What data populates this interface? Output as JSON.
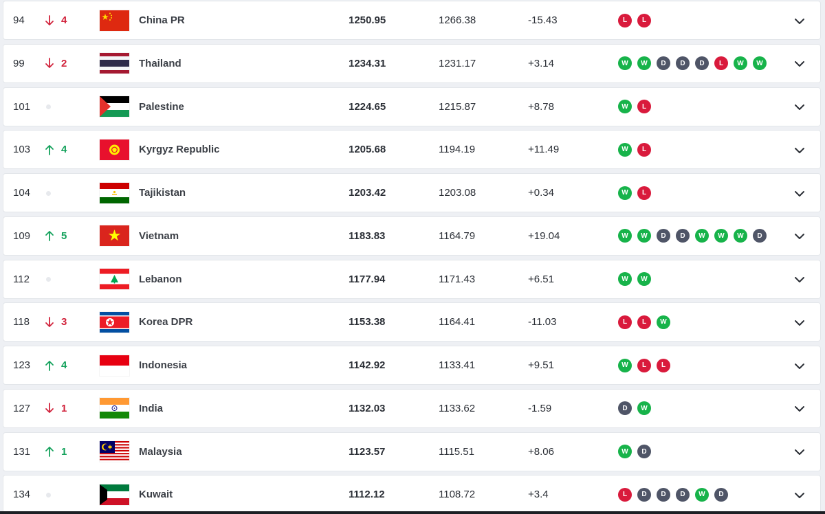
{
  "form_colors": {
    "W": "#17b34a",
    "L": "#d91a3c",
    "D": "#4f5567"
  },
  "movement_colors": {
    "up": "#13a15b",
    "down": "#d1223b"
  },
  "rows": [
    {
      "rank": "94",
      "move": "down",
      "move_by": "4",
      "team": "China PR",
      "flag": "china",
      "points": "1250.95",
      "previous": "1266.38",
      "change": "-15.43",
      "form": [
        "L",
        "L"
      ]
    },
    {
      "rank": "99",
      "move": "down",
      "move_by": "2",
      "team": "Thailand",
      "flag": "thailand",
      "points": "1234.31",
      "previous": "1231.17",
      "change": "+3.14",
      "form": [
        "W",
        "W",
        "D",
        "D",
        "D",
        "L",
        "W",
        "W"
      ]
    },
    {
      "rank": "101",
      "move": "none",
      "move_by": "",
      "team": "Palestine",
      "flag": "palestine",
      "points": "1224.65",
      "previous": "1215.87",
      "change": "+8.78",
      "form": [
        "W",
        "L"
      ]
    },
    {
      "rank": "103",
      "move": "up",
      "move_by": "4",
      "team": "Kyrgyz Republic",
      "flag": "kyrgyz",
      "points": "1205.68",
      "previous": "1194.19",
      "change": "+11.49",
      "form": [
        "W",
        "L"
      ]
    },
    {
      "rank": "104",
      "move": "none",
      "move_by": "",
      "team": "Tajikistan",
      "flag": "tajikistan",
      "points": "1203.42",
      "previous": "1203.08",
      "change": "+0.34",
      "form": [
        "W",
        "L"
      ]
    },
    {
      "rank": "109",
      "move": "up",
      "move_by": "5",
      "team": "Vietnam",
      "flag": "vietnam",
      "points": "1183.83",
      "previous": "1164.79",
      "change": "+19.04",
      "form": [
        "W",
        "W",
        "D",
        "D",
        "W",
        "W",
        "W",
        "D"
      ]
    },
    {
      "rank": "112",
      "move": "none",
      "move_by": "",
      "team": "Lebanon",
      "flag": "lebanon",
      "points": "1177.94",
      "previous": "1171.43",
      "change": "+6.51",
      "form": [
        "W",
        "W"
      ]
    },
    {
      "rank": "118",
      "move": "down",
      "move_by": "3",
      "team": "Korea DPR",
      "flag": "koreadpr",
      "points": "1153.38",
      "previous": "1164.41",
      "change": "-11.03",
      "form": [
        "L",
        "L",
        "W"
      ]
    },
    {
      "rank": "123",
      "move": "up",
      "move_by": "4",
      "team": "Indonesia",
      "flag": "indonesia",
      "points": "1142.92",
      "previous": "1133.41",
      "change": "+9.51",
      "form": [
        "W",
        "L",
        "L"
      ]
    },
    {
      "rank": "127",
      "move": "down",
      "move_by": "1",
      "team": "India",
      "flag": "india",
      "points": "1132.03",
      "previous": "1133.62",
      "change": "-1.59",
      "form": [
        "D",
        "W"
      ]
    },
    {
      "rank": "131",
      "move": "up",
      "move_by": "1",
      "team": "Malaysia",
      "flag": "malaysia",
      "points": "1123.57",
      "previous": "1115.51",
      "change": "+8.06",
      "form": [
        "W",
        "D"
      ]
    },
    {
      "rank": "134",
      "move": "none",
      "move_by": "",
      "team": "Kuwait",
      "flag": "kuwait",
      "points": "1112.12",
      "previous": "1108.72",
      "change": "+3.4",
      "form": [
        "L",
        "D",
        "D",
        "D",
        "W",
        "D"
      ]
    }
  ]
}
